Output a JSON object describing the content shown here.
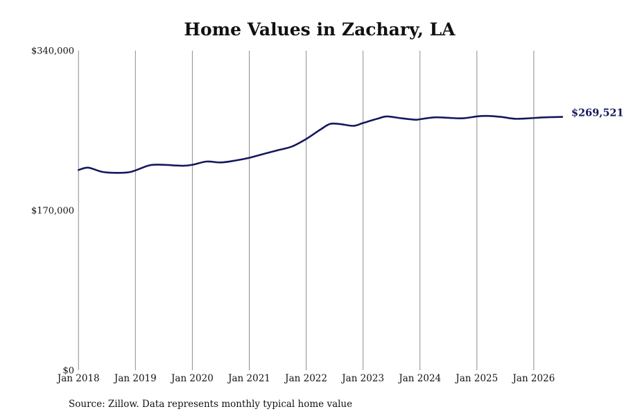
{
  "chart_data": {
    "type": "line",
    "title": "Home Values in Zachary, LA",
    "xlabel": "",
    "ylabel": "",
    "ylim": [
      0,
      340000
    ],
    "y_ticks": [
      "$0",
      "$170,000",
      "$340,000"
    ],
    "y_tick_values": [
      0,
      170000,
      340000
    ],
    "x_ticks": [
      "Jan 2018",
      "Jan 2019",
      "Jan 2020",
      "Jan 2021",
      "Jan 2022",
      "Jan 2023",
      "Jan 2024",
      "Jan 2025",
      "Jan 2026"
    ],
    "x_tick_values": [
      2018,
      2019,
      2020,
      2021,
      2022,
      2023,
      2024,
      2025,
      2026
    ],
    "xlim": [
      2017.5,
      2027.2
    ],
    "grid": "vertical",
    "end_label": "$269,521",
    "line_color": "#15185c",
    "series": [
      {
        "x": [
          2018.0,
          2018.17,
          2018.42,
          2018.67,
          2018.92,
          2019.25,
          2019.5,
          2019.83,
          2020.0,
          2020.25,
          2020.5,
          2020.75,
          2021.0,
          2021.25,
          2021.5,
          2021.75,
          2022.0,
          2022.25,
          2022.42,
          2022.58,
          2022.83,
          2023.0,
          2023.25,
          2023.42,
          2023.67,
          2023.92,
          2024.0,
          2024.25,
          2024.5,
          2024.75,
          2025.0,
          2025.17,
          2025.42,
          2025.67,
          2025.92,
          2026.17,
          2026.5
        ],
        "values": [
          213000,
          215500,
          211000,
          210000,
          211000,
          218000,
          218500,
          217500,
          218500,
          222000,
          221000,
          223000,
          226000,
          230000,
          234000,
          238000,
          246000,
          256000,
          262000,
          262000,
          260000,
          263000,
          267500,
          270000,
          268000,
          266500,
          267000,
          269000,
          268500,
          268000,
          270000,
          270500,
          269500,
          267500,
          268000,
          269000,
          269521
        ]
      }
    ]
  },
  "footer": {
    "source": "Source: Zillow. Data represents monthly typical home value"
  }
}
